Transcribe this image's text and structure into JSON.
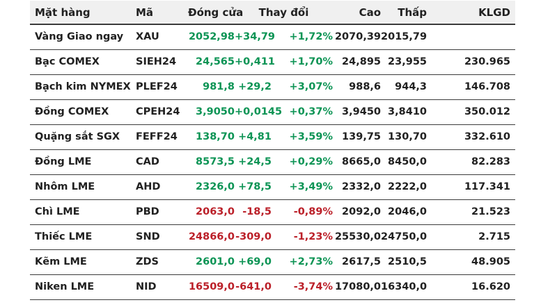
{
  "colors": {
    "up": "#0d9455",
    "down": "#bb2029",
    "text": "#212121",
    "header_bg": "#f0f0f0",
    "border": "#3b3b3b"
  },
  "table": {
    "header": {
      "name": "Mặt hàng",
      "code": "Mã",
      "close": "Đóng cửa",
      "change": "Thay đổi",
      "high": "Cao",
      "low": "Thấp",
      "volume": "KLGD"
    },
    "rows": [
      {
        "name": "Vàng Giao ngay",
        "code": "XAU",
        "close": "2052,98",
        "change": "+34,79",
        "change_pct": "+1,72%",
        "high": "2070,39",
        "low": "2015,79",
        "volume": "",
        "direction": "up"
      },
      {
        "name": "Bạc COMEX",
        "code": "SIEH24",
        "close": "24,565",
        "change": "+0,411",
        "change_pct": "+1,70%",
        "high": "24,895",
        "low": "23,955",
        "volume": "230.965",
        "direction": "up"
      },
      {
        "name": "Bạch kim NYMEX",
        "code": "PLEF24",
        "close": "981,8",
        "change": "+29,2",
        "change_pct": "+3,07%",
        "high": "988,6",
        "low": "944,3",
        "volume": "146.708",
        "direction": "up"
      },
      {
        "name": "Đồng COMEX",
        "code": "CPEH24",
        "close": "3,9050",
        "change": "+0,0145",
        "change_pct": "+0,37%",
        "high": "3,9450",
        "low": "3,8410",
        "volume": "350.012",
        "direction": "up"
      },
      {
        "name": "Quặng sắt SGX",
        "code": "FEFF24",
        "close": "138,70",
        "change": "+4,81",
        "change_pct": "+3,59%",
        "high": "139,75",
        "low": "130,70",
        "volume": "332.610",
        "direction": "up"
      },
      {
        "name": "Đồng LME",
        "code": "CAD",
        "close": "8573,5",
        "change": "+24,5",
        "change_pct": "+0,29%",
        "high": "8665,0",
        "low": "8450,0",
        "volume": "82.283",
        "direction": "up"
      },
      {
        "name": "Nhôm LME",
        "code": "AHD",
        "close": "2326,0",
        "change": "+78,5",
        "change_pct": "+3,49%",
        "high": "2332,0",
        "low": "2222,0",
        "volume": "117.341",
        "direction": "up"
      },
      {
        "name": "Chì LME",
        "code": "PBD",
        "close": "2063,0",
        "change": "-18,5",
        "change_pct": "-0,89%",
        "high": "2092,0",
        "low": "2046,0",
        "volume": "21.523",
        "direction": "down"
      },
      {
        "name": "Thiếc LME",
        "code": "SND",
        "close": "24866,0",
        "change": "-309,0",
        "change_pct": "-1,23%",
        "high": "25530,0",
        "low": "24750,0",
        "volume": "2.715",
        "direction": "down"
      },
      {
        "name": "Kẽm LME",
        "code": "ZDS",
        "close": "2601,0",
        "change": "+69,0",
        "change_pct": "+2,73%",
        "high": "2617,5",
        "low": "2510,5",
        "volume": "48.905",
        "direction": "up"
      },
      {
        "name": "Niken LME",
        "code": "NID",
        "close": "16509,0",
        "change": "-641,0",
        "change_pct": "-3,74%",
        "high": "17080,0",
        "low": "16340,0",
        "volume": "16.620",
        "direction": "down"
      }
    ]
  }
}
